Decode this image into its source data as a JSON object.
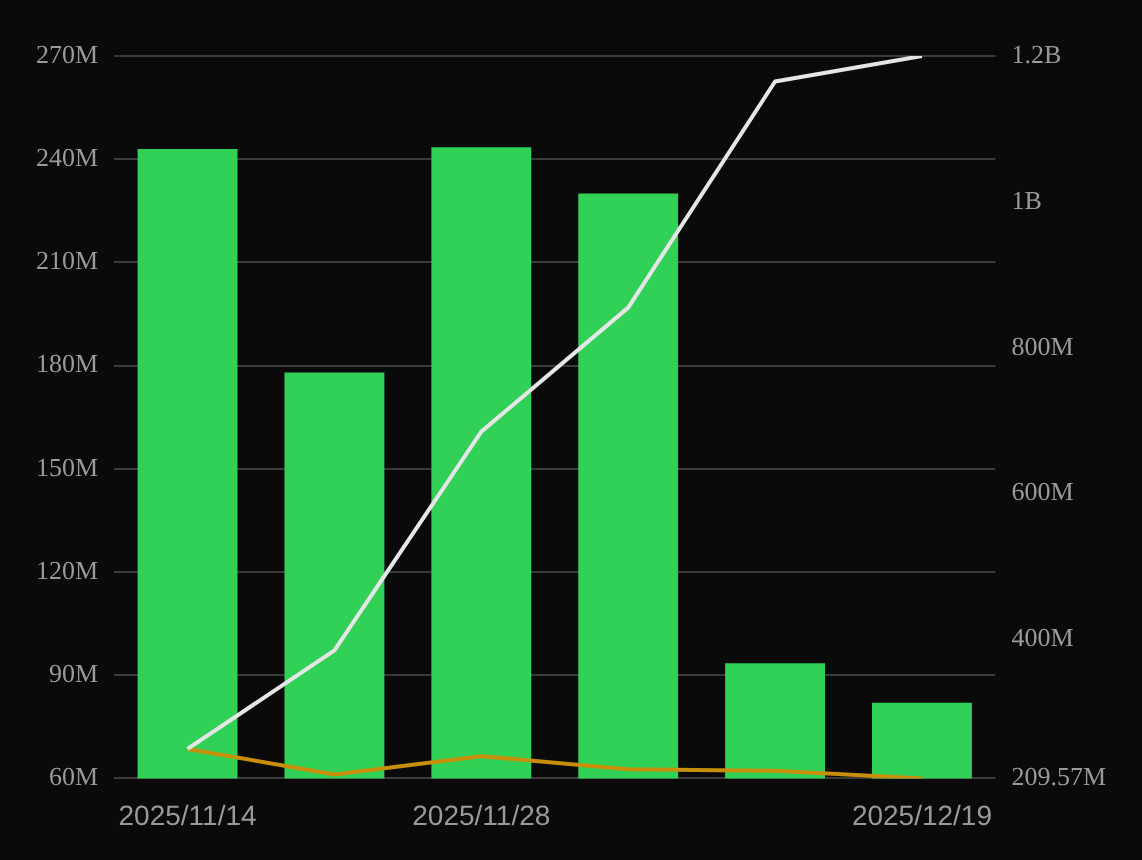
{
  "chart_data": {
    "type": "bar",
    "categories": [
      "2025/11/14",
      null,
      "2025/11/28",
      null,
      null,
      "2025/12/19"
    ],
    "series": [
      {
        "color": "#31d158",
        "values": [
          243000000,
          178000000,
          243500000,
          230000000,
          93500000,
          82000000
        ]
      },
      {
        "type": "line",
        "axis": "y2",
        "color": "#e6e6e6",
        "values": [
          250000000,
          385000000,
          685000000,
          855000000,
          1165000000,
          1200000000
        ]
      },
      {
        "type": "line",
        "axis": "y2",
        "color": "#c8900a",
        "values": [
          250000000,
          215000000,
          240000000,
          222000000,
          220000000,
          209570000
        ]
      }
    ],
    "ylim": [
      60000000,
      270000000
    ],
    "yticks": [
      {
        "value": 60000000,
        "label": "60M"
      },
      {
        "value": 90000000,
        "label": "90M"
      },
      {
        "value": 120000000,
        "label": "120M"
      },
      {
        "value": 150000000,
        "label": "150M"
      },
      {
        "value": 180000000,
        "label": "180M"
      },
      {
        "value": 210000000,
        "label": "210M"
      },
      {
        "value": 240000000,
        "label": "240M"
      },
      {
        "value": 270000000,
        "label": "270M"
      }
    ],
    "y2lim": [
      209570000,
      1200000000
    ],
    "y2ticks": [
      {
        "value": 209570000,
        "label": "209.57M"
      },
      {
        "value": 400000000,
        "label": "400M"
      },
      {
        "value": 600000000,
        "label": "600M"
      },
      {
        "value": 800000000,
        "label": "800M"
      },
      {
        "value": 1000000000,
        "label": "1B"
      },
      {
        "value": 1200000000,
        "label": "1.2B"
      }
    ],
    "grid": "y",
    "legend": false,
    "marker": "none",
    "line_style": "solid"
  }
}
